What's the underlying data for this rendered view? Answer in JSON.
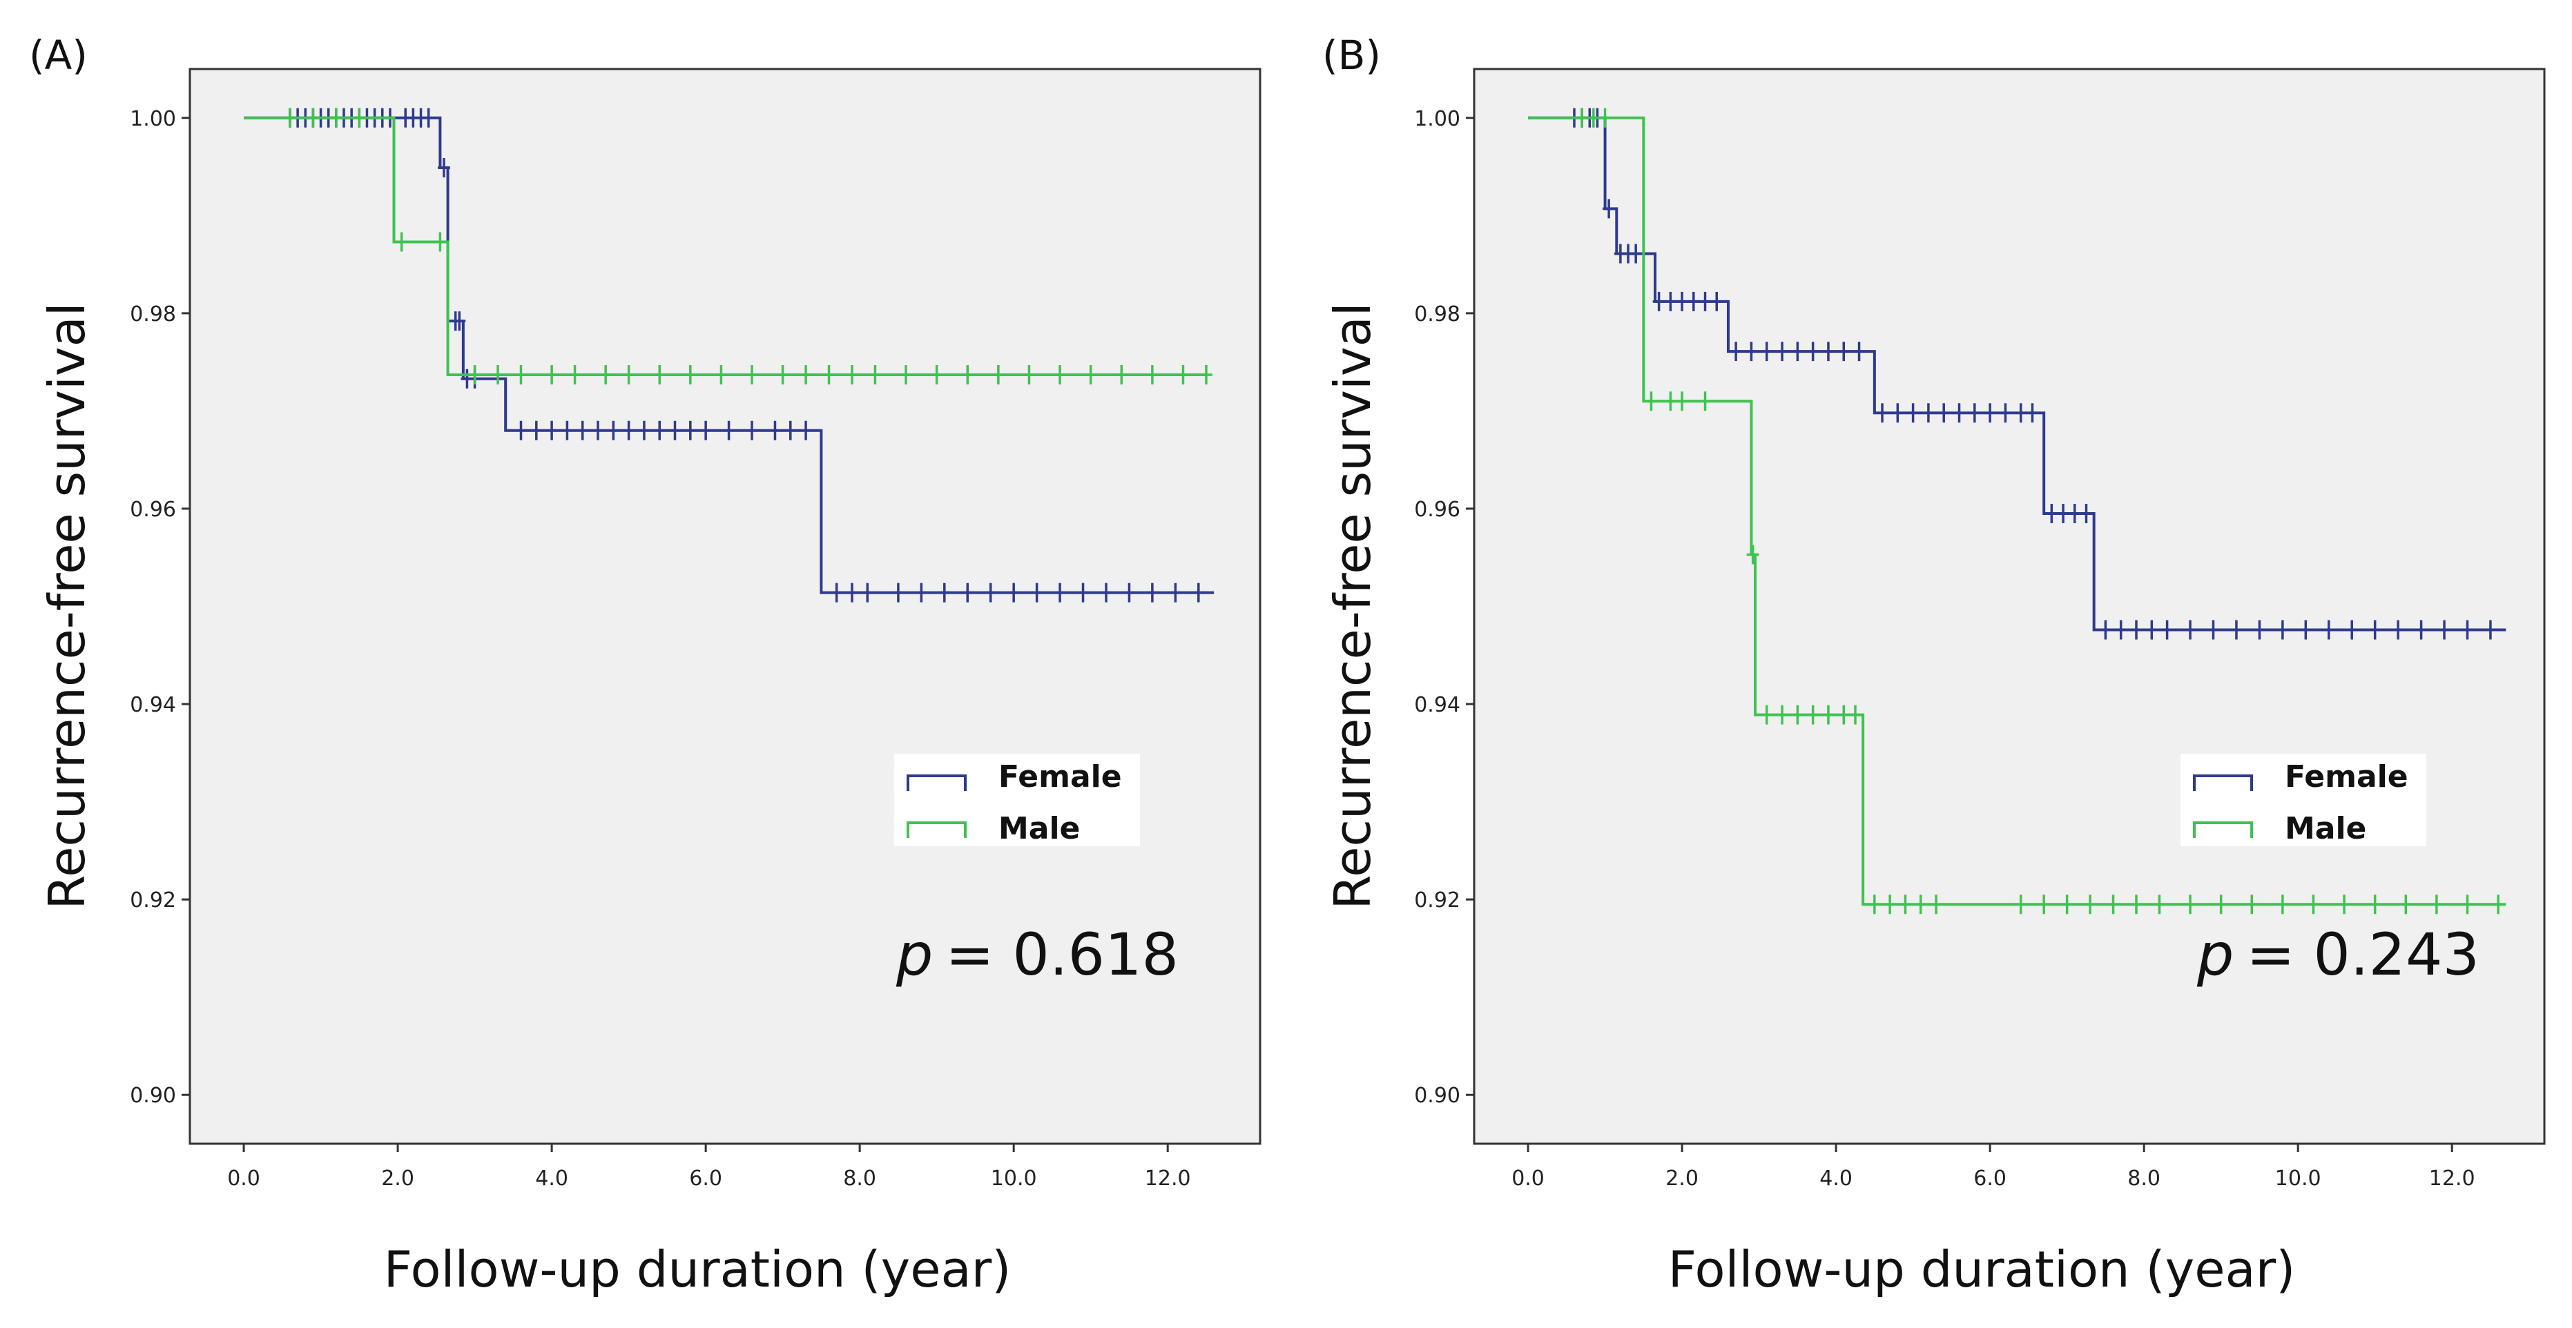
{
  "colors": {
    "female": "#2e3a8c",
    "male": "#3fc251",
    "plot_bg": "#f0f0f0"
  },
  "chart_data": [
    {
      "type": "line",
      "subtype": "kaplan-meier",
      "panel_label": "(A)",
      "xlabel": "Follow-up duration (year)",
      "ylabel": "Recurrence-free survival",
      "xlim": [
        -0.7,
        13.2
      ],
      "ylim": [
        0.895,
        1.005
      ],
      "xticks": [
        "0.0",
        "2.0",
        "4.0",
        "6.0",
        "8.0",
        "10.0",
        "12.0"
      ],
      "yticks": [
        "0.90",
        "0.92",
        "0.94",
        "0.96",
        "0.98",
        "1.00"
      ],
      "legend": {
        "female_label": "Female",
        "male_label": "Male",
        "placement": "center-right"
      },
      "p_symbol": "p",
      "p_text": "= 0.618",
      "series": [
        {
          "name": "Female",
          "color_key": "female",
          "steps": [
            [
              0,
              1.0
            ],
            [
              2.55,
              0.9949
            ],
            [
              2.65,
              0.9792
            ],
            [
              2.85,
              0.9733
            ],
            [
              3.4,
              0.968
            ],
            [
              7.5,
              0.9514
            ],
            [
              12.6,
              0.9514
            ]
          ],
          "censor": [
            [
              0.6,
              1.0
            ],
            [
              0.7,
              1.0
            ],
            [
              0.8,
              1.0
            ],
            [
              0.9,
              1.0
            ],
            [
              1.0,
              1.0
            ],
            [
              1.1,
              1.0
            ],
            [
              1.2,
              1.0
            ],
            [
              1.3,
              1.0
            ],
            [
              1.4,
              1.0
            ],
            [
              1.5,
              1.0
            ],
            [
              1.6,
              1.0
            ],
            [
              1.7,
              1.0
            ],
            [
              1.8,
              1.0
            ],
            [
              1.9,
              1.0
            ],
            [
              2.1,
              1.0
            ],
            [
              2.2,
              1.0
            ],
            [
              2.3,
              1.0
            ],
            [
              2.4,
              1.0
            ],
            [
              2.6,
              0.9949
            ],
            [
              2.75,
              0.9792
            ],
            [
              2.8,
              0.9792
            ],
            [
              2.9,
              0.9733
            ],
            [
              3.0,
              0.9733
            ],
            [
              3.6,
              0.968
            ],
            [
              3.8,
              0.968
            ],
            [
              4.0,
              0.968
            ],
            [
              4.2,
              0.968
            ],
            [
              4.4,
              0.968
            ],
            [
              4.6,
              0.968
            ],
            [
              4.8,
              0.968
            ],
            [
              5.0,
              0.968
            ],
            [
              5.2,
              0.968
            ],
            [
              5.4,
              0.968
            ],
            [
              5.6,
              0.968
            ],
            [
              5.8,
              0.968
            ],
            [
              6.0,
              0.968
            ],
            [
              6.3,
              0.968
            ],
            [
              6.6,
              0.968
            ],
            [
              6.9,
              0.968
            ],
            [
              7.1,
              0.968
            ],
            [
              7.3,
              0.968
            ],
            [
              7.7,
              0.9514
            ],
            [
              7.9,
              0.9514
            ],
            [
              8.1,
              0.9514
            ],
            [
              8.5,
              0.9514
            ],
            [
              8.8,
              0.9514
            ],
            [
              9.1,
              0.9514
            ],
            [
              9.4,
              0.9514
            ],
            [
              9.7,
              0.9514
            ],
            [
              10.0,
              0.9514
            ],
            [
              10.3,
              0.9514
            ],
            [
              10.6,
              0.9514
            ],
            [
              10.9,
              0.9514
            ],
            [
              11.2,
              0.9514
            ],
            [
              11.5,
              0.9514
            ],
            [
              11.8,
              0.9514
            ],
            [
              12.1,
              0.9514
            ],
            [
              12.4,
              0.9514
            ]
          ]
        },
        {
          "name": "Male",
          "color_key": "male",
          "steps": [
            [
              0,
              1.0
            ],
            [
              1.95,
              0.9873
            ],
            [
              2.65,
              0.9737
            ],
            [
              12.5,
              0.9737
            ]
          ],
          "censor": [
            [
              0.6,
              1.0
            ],
            [
              0.9,
              1.0
            ],
            [
              1.2,
              1.0
            ],
            [
              1.5,
              1.0
            ],
            [
              2.05,
              0.9873
            ],
            [
              2.55,
              0.9873
            ],
            [
              3.0,
              0.9737
            ],
            [
              3.3,
              0.9737
            ],
            [
              3.6,
              0.9737
            ],
            [
              4.0,
              0.9737
            ],
            [
              4.3,
              0.9737
            ],
            [
              4.7,
              0.9737
            ],
            [
              5.0,
              0.9737
            ],
            [
              5.4,
              0.9737
            ],
            [
              5.8,
              0.9737
            ],
            [
              6.2,
              0.9737
            ],
            [
              6.6,
              0.9737
            ],
            [
              7.0,
              0.9737
            ],
            [
              7.3,
              0.9737
            ],
            [
              7.6,
              0.9737
            ],
            [
              7.9,
              0.9737
            ],
            [
              8.2,
              0.9737
            ],
            [
              8.6,
              0.9737
            ],
            [
              9.0,
              0.9737
            ],
            [
              9.4,
              0.9737
            ],
            [
              9.8,
              0.9737
            ],
            [
              10.2,
              0.9737
            ],
            [
              10.6,
              0.9737
            ],
            [
              11.0,
              0.9737
            ],
            [
              11.4,
              0.9737
            ],
            [
              11.8,
              0.9737
            ],
            [
              12.2,
              0.9737
            ],
            [
              12.5,
              0.9737
            ]
          ]
        }
      ]
    },
    {
      "type": "line",
      "subtype": "kaplan-meier",
      "panel_label": "(B)",
      "xlabel": "Follow-up duration (year)",
      "ylabel": "Recurrence-free survival",
      "xlim": [
        -0.7,
        13.2
      ],
      "ylim": [
        0.895,
        1.005
      ],
      "xticks": [
        "0.0",
        "2.0",
        "4.0",
        "6.0",
        "8.0",
        "10.0",
        "12.0"
      ],
      "yticks": [
        "0.90",
        "0.92",
        "0.94",
        "0.96",
        "0.98",
        "1.00"
      ],
      "legend": {
        "female_label": "Female",
        "male_label": "Male",
        "placement": "center-right"
      },
      "p_symbol": "p",
      "p_text": "= 0.243",
      "series": [
        {
          "name": "Female",
          "color_key": "female",
          "steps": [
            [
              0,
              1.0
            ],
            [
              1.0,
              0.9907
            ],
            [
              1.15,
              0.9861
            ],
            [
              1.65,
              0.9812
            ],
            [
              2.6,
              0.9761
            ],
            [
              4.5,
              0.9698
            ],
            [
              6.7,
              0.9595
            ],
            [
              7.35,
              0.9476
            ],
            [
              12.7,
              0.9476
            ]
          ],
          "censor": [
            [
              0.6,
              1.0
            ],
            [
              0.7,
              1.0
            ],
            [
              0.8,
              1.0
            ],
            [
              0.9,
              1.0
            ],
            [
              1.05,
              0.9907
            ],
            [
              1.2,
              0.9861
            ],
            [
              1.3,
              0.9861
            ],
            [
              1.4,
              0.9861
            ],
            [
              1.5,
              0.9861
            ],
            [
              1.7,
              0.9812
            ],
            [
              1.85,
              0.9812
            ],
            [
              2.0,
              0.9812
            ],
            [
              2.15,
              0.9812
            ],
            [
              2.3,
              0.9812
            ],
            [
              2.45,
              0.9812
            ],
            [
              2.7,
              0.9761
            ],
            [
              2.9,
              0.9761
            ],
            [
              3.1,
              0.9761
            ],
            [
              3.3,
              0.9761
            ],
            [
              3.5,
              0.9761
            ],
            [
              3.7,
              0.9761
            ],
            [
              3.9,
              0.9761
            ],
            [
              4.1,
              0.9761
            ],
            [
              4.3,
              0.9761
            ],
            [
              4.6,
              0.9698
            ],
            [
              4.8,
              0.9698
            ],
            [
              5.0,
              0.9698
            ],
            [
              5.2,
              0.9698
            ],
            [
              5.4,
              0.9698
            ],
            [
              5.6,
              0.9698
            ],
            [
              5.8,
              0.9698
            ],
            [
              6.0,
              0.9698
            ],
            [
              6.2,
              0.9698
            ],
            [
              6.4,
              0.9698
            ],
            [
              6.55,
              0.9698
            ],
            [
              6.8,
              0.9595
            ],
            [
              6.95,
              0.9595
            ],
            [
              7.1,
              0.9595
            ],
            [
              7.25,
              0.9595
            ],
            [
              7.5,
              0.9476
            ],
            [
              7.7,
              0.9476
            ],
            [
              7.9,
              0.9476
            ],
            [
              8.1,
              0.9476
            ],
            [
              8.3,
              0.9476
            ],
            [
              8.6,
              0.9476
            ],
            [
              8.9,
              0.9476
            ],
            [
              9.2,
              0.9476
            ],
            [
              9.5,
              0.9476
            ],
            [
              9.8,
              0.9476
            ],
            [
              10.1,
              0.9476
            ],
            [
              10.4,
              0.9476
            ],
            [
              10.7,
              0.9476
            ],
            [
              11.0,
              0.9476
            ],
            [
              11.3,
              0.9476
            ],
            [
              11.6,
              0.9476
            ],
            [
              11.9,
              0.9476
            ],
            [
              12.2,
              0.9476
            ],
            [
              12.5,
              0.9476
            ]
          ]
        },
        {
          "name": "Male",
          "color_key": "male",
          "steps": [
            [
              0,
              1.0
            ],
            [
              1.5,
              0.971
            ],
            [
              2.9,
              0.9553
            ],
            [
              2.95,
              0.9389
            ],
            [
              4.35,
              0.9195
            ],
            [
              12.7,
              0.9195
            ]
          ],
          "censor": [
            [
              0.7,
              1.0
            ],
            [
              0.85,
              1.0
            ],
            [
              1.0,
              1.0
            ],
            [
              1.6,
              0.971
            ],
            [
              1.85,
              0.971
            ],
            [
              2.0,
              0.971
            ],
            [
              2.3,
              0.971
            ],
            [
              2.92,
              0.9553
            ],
            [
              3.1,
              0.9389
            ],
            [
              3.3,
              0.9389
            ],
            [
              3.5,
              0.9389
            ],
            [
              3.7,
              0.9389
            ],
            [
              3.9,
              0.9389
            ],
            [
              4.1,
              0.9389
            ],
            [
              4.25,
              0.9389
            ],
            [
              4.5,
              0.9195
            ],
            [
              4.7,
              0.9195
            ],
            [
              4.9,
              0.9195
            ],
            [
              5.1,
              0.9195
            ],
            [
              5.3,
              0.9195
            ],
            [
              6.4,
              0.9195
            ],
            [
              6.7,
              0.9195
            ],
            [
              7.0,
              0.9195
            ],
            [
              7.3,
              0.9195
            ],
            [
              7.6,
              0.9195
            ],
            [
              7.9,
              0.9195
            ],
            [
              8.2,
              0.9195
            ],
            [
              8.6,
              0.9195
            ],
            [
              9.0,
              0.9195
            ],
            [
              9.4,
              0.9195
            ],
            [
              9.8,
              0.9195
            ],
            [
              10.2,
              0.9195
            ],
            [
              10.6,
              0.9195
            ],
            [
              11.0,
              0.9195
            ],
            [
              11.4,
              0.9195
            ],
            [
              11.8,
              0.9195
            ],
            [
              12.2,
              0.9195
            ],
            [
              12.6,
              0.9195
            ]
          ]
        }
      ]
    }
  ]
}
